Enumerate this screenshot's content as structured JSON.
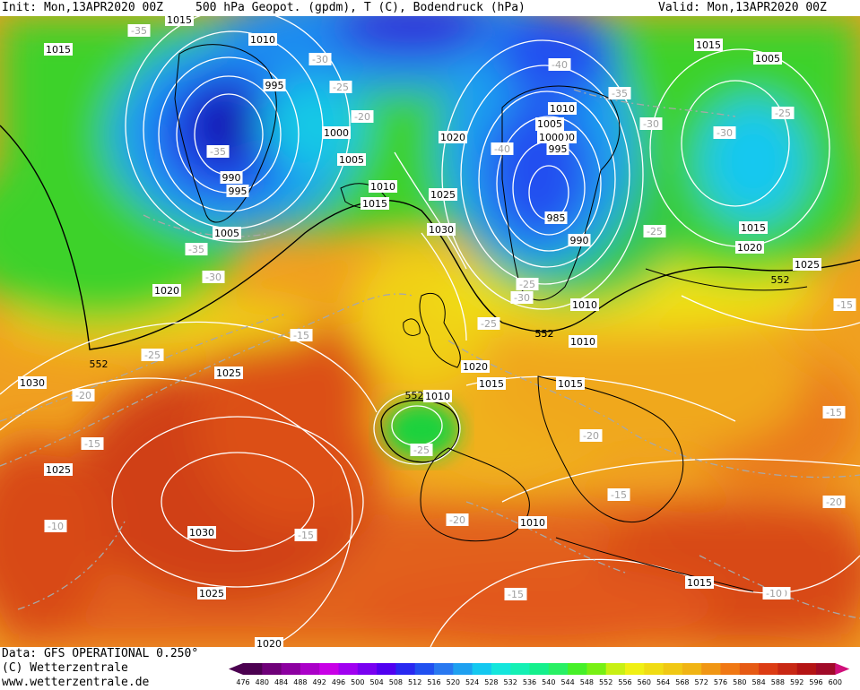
{
  "header": {
    "init_label": "Init: Mon,13APR2020 00Z",
    "title": "500 hPa Geopot. (gpdm), T (C), Bodendruck (hPa)",
    "valid_label": "Valid: Mon,13APR2020 00Z"
  },
  "footer": {
    "data_source": "Data: GFS OPERATIONAL 0.250°",
    "copyright": "(C) Wetterzentrale",
    "website": "www.wetterzentrale.de"
  },
  "colorbar": {
    "ticks": [
      "476",
      "480",
      "484",
      "488",
      "492",
      "496",
      "500",
      "504",
      "508",
      "512",
      "516",
      "520",
      "524",
      "528",
      "532",
      "536",
      "540",
      "544",
      "548",
      "552",
      "556",
      "560",
      "564",
      "568",
      "572",
      "576",
      "580",
      "584",
      "588",
      "592",
      "596",
      "600"
    ],
    "colors": [
      "#4b0050",
      "#6e0078",
      "#8c00a0",
      "#aa00c8",
      "#c800e6",
      "#a000f0",
      "#7800f0",
      "#5000f0",
      "#2828f0",
      "#2050f0",
      "#2878f0",
      "#1ea0f0",
      "#14c8f0",
      "#14e6dc",
      "#14f0b4",
      "#14f08c",
      "#28f064",
      "#46f028",
      "#78f014",
      "#c8f014",
      "#f0f014",
      "#f0dc14",
      "#f0c814",
      "#f0b414",
      "#f09614",
      "#f07814",
      "#e65a14",
      "#dc3c14",
      "#c82814",
      "#b41414",
      "#a00a28"
    ]
  },
  "map": {
    "pressure_labels": [
      "1015",
      "1015",
      "1015",
      "1010",
      "1000",
      "1020",
      "1005",
      "995",
      "1000",
      "1005",
      "990",
      "995",
      "1010",
      "1015",
      "1025",
      "1030",
      "1005",
      "1020",
      "1010",
      "1005",
      "1000",
      "995",
      "985",
      "990",
      "1010",
      "1015",
      "1020",
      "1025",
      "1015",
      "1030",
      "1025",
      "1025",
      "1030",
      "1025",
      "1020",
      "1010",
      "1015",
      "1015",
      "1015",
      "1010",
      "1010",
      "1005",
      "1020"
    ],
    "temperature_labels": [
      "-35",
      "-30",
      "-25",
      "-20",
      "-35",
      "-35",
      "-30",
      "-40",
      "-40",
      "-35",
      "-30",
      "-30",
      "-25",
      "-25",
      "-25",
      "-30",
      "-25",
      "-15",
      "-20",
      "-25",
      "-15",
      "-15",
      "-10",
      "-15",
      "-20",
      "-25",
      "-20",
      "-15",
      "-20",
      "-20",
      "-15",
      "-15",
      "-10",
      "-25"
    ],
    "geopotential_labels": [
      "552",
      "552",
      "552",
      "552",
      "552"
    ]
  }
}
